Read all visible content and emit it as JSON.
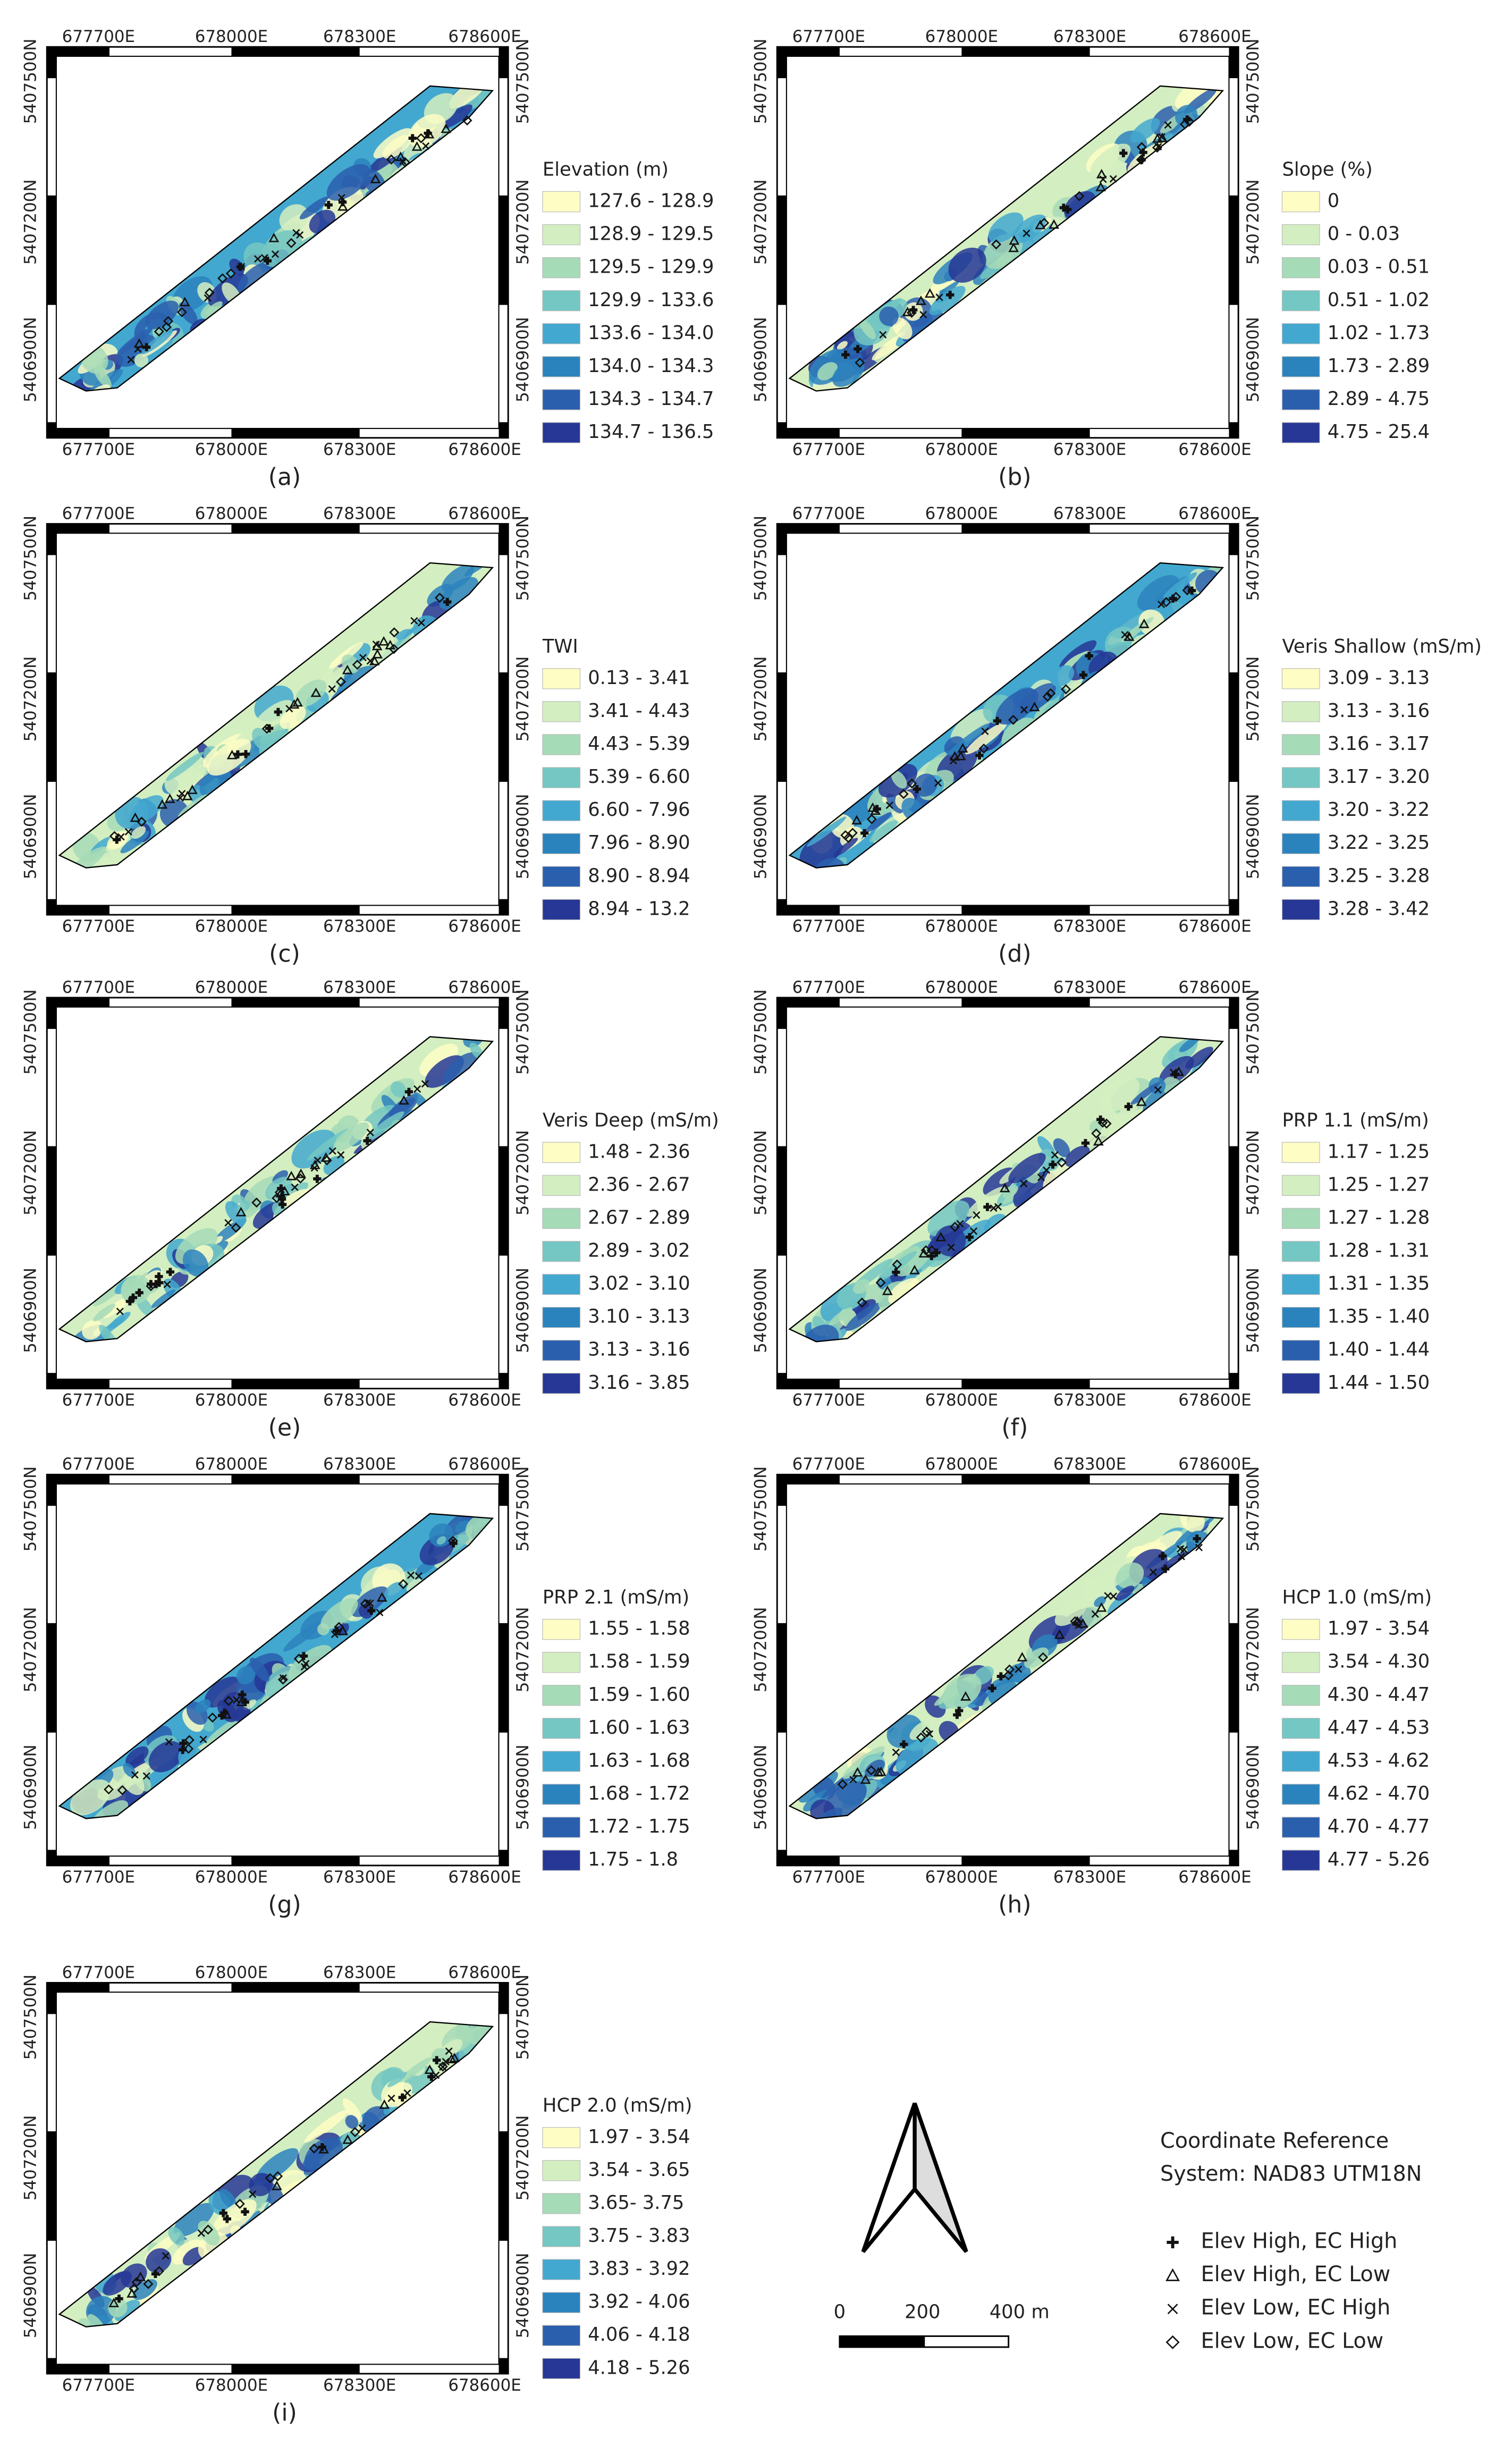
{
  "palette": [
    "#fdfdc4",
    "#d3eec0",
    "#a6dbb7",
    "#74c7c2",
    "#43a8cf",
    "#2b83bd",
    "#2a5fae",
    "#263795"
  ],
  "map_axes": {
    "x_ticks": [
      "677700E",
      "678000E",
      "678300E",
      "678600E"
    ],
    "y_ticks": [
      "5407500N",
      "5407200N",
      "5406900N"
    ]
  },
  "panels": [
    {
      "label": "(a)",
      "legend_title": "Elevation (m)",
      "classes": [
        "127.6 - 128.9",
        "128.9 - 129.5",
        "129.5 - 129.9",
        "129.9 - 133.6",
        "133.6 - 134.0",
        "134.0 - 134.3",
        "134.3 - 134.7",
        "134.7 - 136.5"
      ]
    },
    {
      "label": "(b)",
      "legend_title": "Slope (%)",
      "classes": [
        "0",
        "0 - 0.03",
        "0.03 - 0.51",
        "0.51 - 1.02",
        "1.02 - 1.73",
        "1.73 - 2.89",
        "2.89 - 4.75",
        "4.75 - 25.4"
      ]
    },
    {
      "label": "(c)",
      "legend_title": "TWI",
      "classes": [
        "0.13 - 3.41",
        "3.41 - 4.43",
        "4.43 - 5.39",
        "5.39 - 6.60",
        "6.60 - 7.96",
        "7.96 - 8.90",
        "8.90 - 8.94",
        "8.94 - 13.2"
      ]
    },
    {
      "label": "(d)",
      "legend_title": "Veris Shallow (mS/m)",
      "classes": [
        "3.09 - 3.13",
        "3.13 - 3.16",
        "3.16 - 3.17",
        "3.17 - 3.20",
        "3.20 - 3.22",
        "3.22 - 3.25",
        "3.25 - 3.28",
        "3.28 - 3.42"
      ]
    },
    {
      "label": "(e)",
      "legend_title": "Veris Deep (mS/m)",
      "classes": [
        "1.48 - 2.36",
        "2.36 - 2.67",
        "2.67 - 2.89",
        "2.89 - 3.02",
        "3.02 - 3.10",
        "3.10 - 3.13",
        "3.13 - 3.16",
        "3.16 - 3.85"
      ]
    },
    {
      "label": "(f)",
      "legend_title": "PRP 1.1 (mS/m)",
      "classes": [
        "1.17 - 1.25",
        "1.25 - 1.27",
        "1.27 - 1.28",
        "1.28 - 1.31",
        "1.31 - 1.35",
        "1.35 - 1.40",
        "1.40 - 1.44",
        "1.44 - 1.50"
      ]
    },
    {
      "label": "(g)",
      "legend_title": "PRP 2.1 (mS/m)",
      "classes": [
        "1.55 - 1.58",
        "1.58 - 1.59",
        "1.59 - 1.60",
        "1.60 - 1.63",
        "1.63 - 1.68",
        "1.68 - 1.72",
        "1.72 - 1.75",
        "1.75 - 1.8"
      ]
    },
    {
      "label": "(h)",
      "legend_title": "HCP 1.0 (mS/m)",
      "classes": [
        "1.97 - 3.54",
        "3.54 - 4.30",
        "4.30 - 4.47",
        "4.47 - 4.53",
        "4.53 - 4.62",
        "4.62 - 4.70",
        "4.70 - 4.77",
        "4.77 - 5.26"
      ]
    },
    {
      "label": "(i)",
      "legend_title": "HCP 2.0 (mS/m)",
      "classes": [
        "1.97 - 3.54",
        "3.54 - 3.65",
        "3.65- 3.75",
        "3.75 - 3.83",
        "3.83 - 3.92",
        "3.92 - 4.06",
        "4.06 - 4.18",
        "4.18 - 5.26"
      ]
    }
  ],
  "scale_bar": [
    "0",
    "200",
    "400 m"
  ],
  "crs": [
    "Coordinate Reference",
    "System: NAD83 UTM18N"
  ],
  "point_legend": [
    {
      "label": "Elev High, EC High",
      "symbol": "plus"
    },
    {
      "label": "Elev High, EC Low",
      "symbol": "triangle"
    },
    {
      "label": "Elev Low, EC High",
      "symbol": "x"
    },
    {
      "label": "Elev Low, EC Low",
      "symbol": "diamond"
    }
  ]
}
